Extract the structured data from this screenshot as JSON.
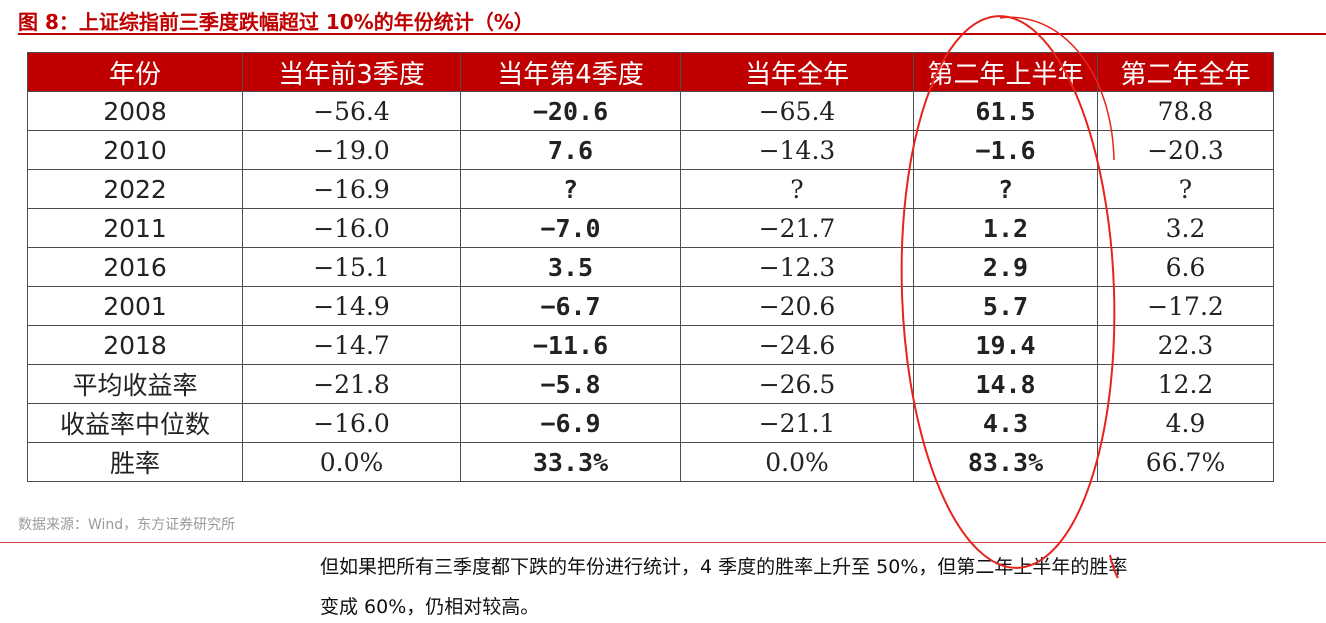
{
  "figure": {
    "title": "图 8：上证综指前三季度跌幅超过 10%的年份统计（%）",
    "source": "数据来源：Wind，东方证券研究所"
  },
  "table": {
    "headers": [
      "年份",
      "当年前3季度",
      "当年第4季度",
      "当年全年",
      "第二年上半年",
      "第二年全年"
    ],
    "rows": [
      [
        "2008",
        "−56.4",
        "−20.6",
        "−65.4",
        "61.5",
        "78.8"
      ],
      [
        "2010",
        "−19.0",
        "7.6",
        "−14.3",
        "−1.6",
        "−20.3"
      ],
      [
        "2022",
        "−16.9",
        "?",
        "?",
        "?",
        "?"
      ],
      [
        "2011",
        "−16.0",
        "−7.0",
        "−21.7",
        "1.2",
        "3.2"
      ],
      [
        "2016",
        "−15.1",
        "3.5",
        "−12.3",
        "2.9",
        "6.6"
      ],
      [
        "2001",
        "−14.9",
        "−6.7",
        "−20.6",
        "5.7",
        "−17.2"
      ],
      [
        "2018",
        "−14.7",
        "−11.6",
        "−24.6",
        "19.4",
        "22.3"
      ],
      [
        "平均收益率",
        "−21.8",
        "−5.8",
        "−26.5",
        "14.8",
        "12.2"
      ],
      [
        "收益率中位数",
        "−16.0",
        "−6.9",
        "−21.1",
        "4.3",
        "4.9"
      ],
      [
        "胜率",
        "0.0%",
        "33.3%",
        "0.0%",
        "83.3%",
        "66.7%"
      ]
    ]
  },
  "body_text": {
    "line1": "但如果把所有三季度都下跌的年份进行统计，4 季度的胜率上升至 50%，但第二年上半年的胜率",
    "line2": "变成 60%，仍相对较高。"
  },
  "colors": {
    "header_bg": "#c00000",
    "header_text": "#ffffff",
    "title_red": "#c00000",
    "annotation_red": "#e8231c"
  },
  "annotation": {
    "shape": "hand-drawn-ellipse",
    "highlights_column": "第二年上半年"
  }
}
